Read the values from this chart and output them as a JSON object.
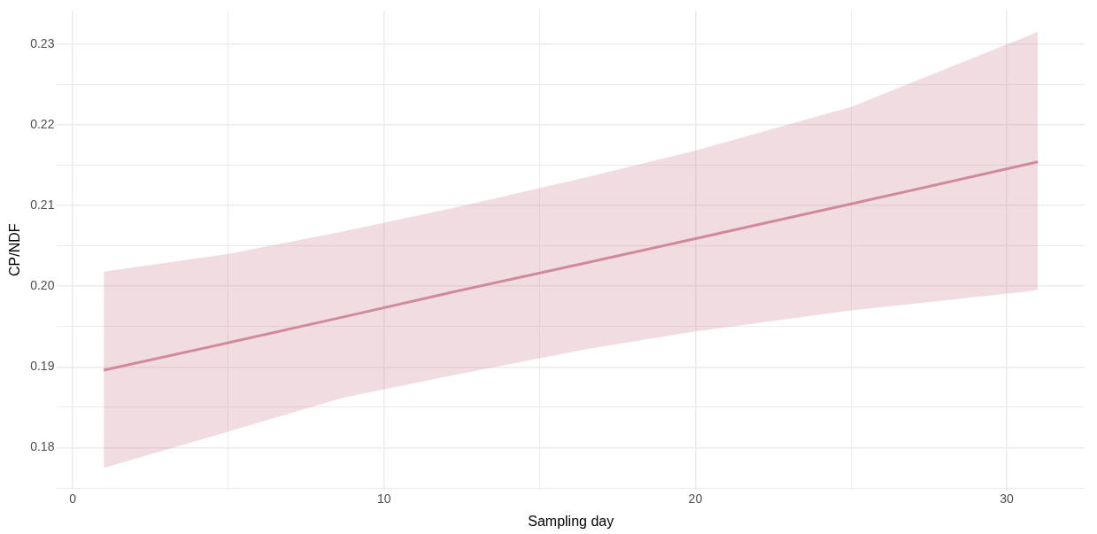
{
  "chart_data": {
    "type": "line",
    "xlabel": "Sampling day",
    "ylabel": "CP/NDF",
    "x": [
      1,
      5,
      8.7,
      12,
      16.5,
      20,
      25,
      31
    ],
    "series": [
      {
        "color": "#d08a9c",
        "values": [
          0.1896,
          0.193,
          0.1962,
          0.1991,
          0.2029,
          0.2059,
          0.2102,
          0.2154
        ],
        "lower": [
          0.1775,
          0.182,
          0.1862,
          0.1888,
          0.1922,
          0.1944,
          0.197,
          0.1995
        ],
        "upper": [
          0.2018,
          0.204,
          0.2068,
          0.2095,
          0.2135,
          0.2168,
          0.2222,
          0.2315
        ]
      }
    ],
    "xlim": [
      -0.5,
      32.5
    ],
    "xticks": [
      0,
      {
        "value": 5,
        "label": null
      },
      10,
      {
        "value": 15,
        "label": null
      },
      20,
      {
        "value": 25,
        "label": null
      },
      30
    ],
    "ylim": [
      0.1748,
      0.2342
    ],
    "yticks": [
      {
        "value": 0.175,
        "label": null
      },
      0.18,
      {
        "value": 0.185,
        "label": null
      },
      0.19,
      {
        "value": 0.195,
        "label": null
      },
      "0.20",
      {
        "value": 0.205,
        "label": null
      },
      0.21,
      {
        "value": 0.215,
        "label": null
      },
      0.22,
      {
        "value": 0.225,
        "label": null
      },
      0.23
    ],
    "grid": true,
    "legend": false,
    "marker": "none",
    "line_style": "solid"
  }
}
